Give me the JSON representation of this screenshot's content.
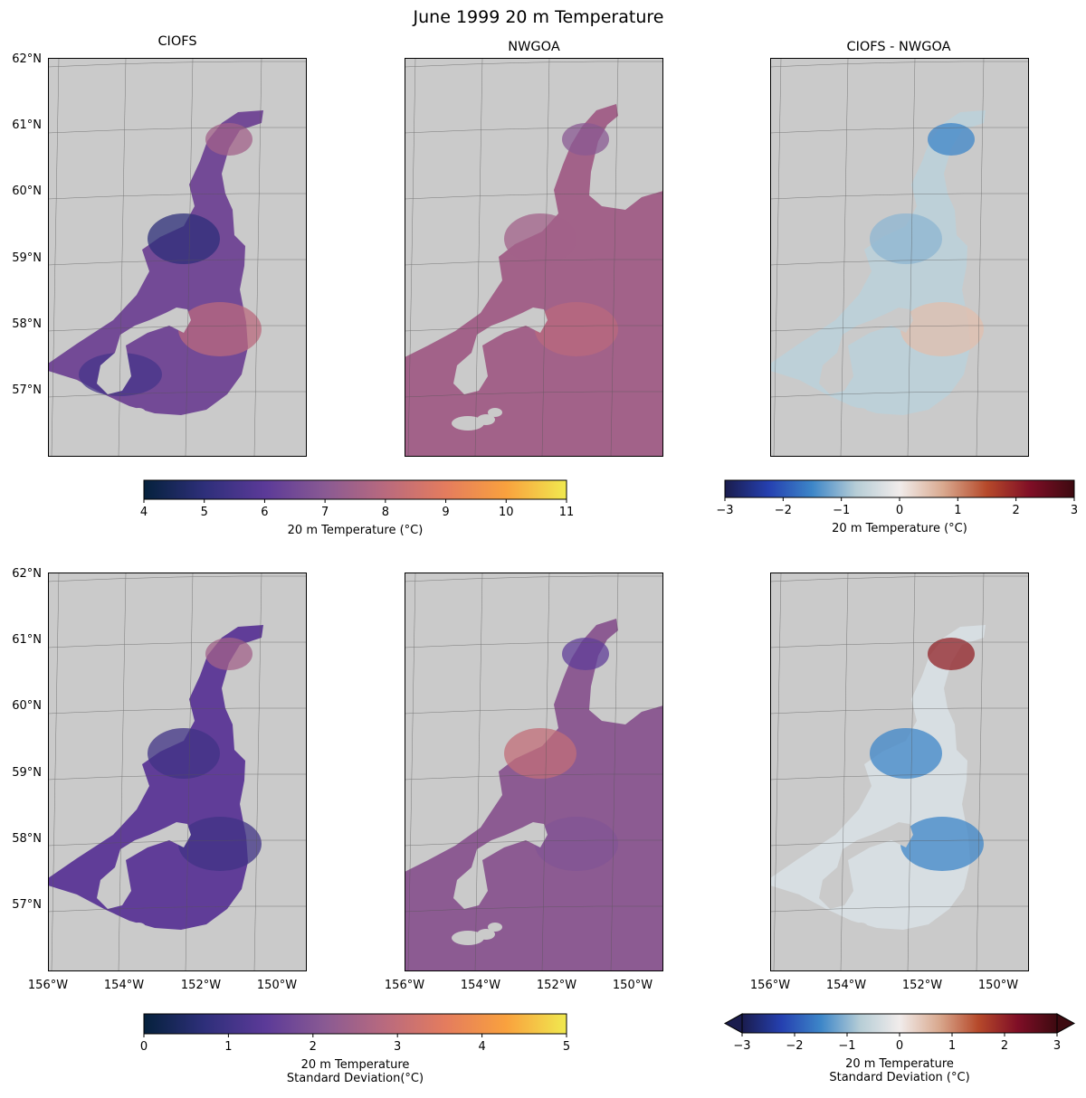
{
  "figure": {
    "title": "June 1999 20 m Temperature",
    "column_titles": [
      "CIOFS",
      "NWGOA",
      "CIOFS - NWGOA"
    ],
    "lat_labels": [
      "62°N",
      "61°N",
      "60°N",
      "59°N",
      "58°N",
      "57°N"
    ],
    "lon_labels": [
      "156°W",
      "154°W",
      "152°W",
      "150°W"
    ]
  },
  "chart_data": [
    {
      "type": "heatmap",
      "panel": "top-left",
      "title": "CIOFS",
      "field": "20 m Temperature (°C)",
      "domain": "CIOFS",
      "colormap": "thermal",
      "clim": [
        4,
        11
      ],
      "xlim": [
        -156,
        -149
      ],
      "ylim": [
        56,
        62
      ],
      "gridlines": true,
      "typical_values": {
        "upper_inlet": 7.5,
        "inlet": 5,
        "shelf_east": 8,
        "southwest": 5.5
      }
    },
    {
      "type": "heatmap",
      "panel": "top-middle",
      "title": "NWGOA",
      "field": "20 m Temperature (°C)",
      "domain": "NWGOA",
      "colormap": "thermal",
      "clim": [
        4,
        11
      ],
      "xlim": [
        -156,
        -149
      ],
      "ylim": [
        56,
        62
      ],
      "gridlines": true,
      "typical_values": {
        "inlet": 7,
        "shelf": 7.5,
        "offshore": 8
      }
    },
    {
      "type": "heatmap",
      "panel": "top-right",
      "title": "CIOFS - NWGOA",
      "field": "20 m Temperature (°C)",
      "domain": "CIOFS",
      "colormap": "balance",
      "clim": [
        -3,
        3
      ],
      "xlim": [
        -156,
        -149
      ],
      "ylim": [
        56,
        62
      ],
      "gridlines": true,
      "typical_values": {
        "inlet": -1.5,
        "shelf": -1,
        "outer_edge": 0.5
      }
    },
    {
      "type": "heatmap",
      "panel": "bottom-left",
      "title": "",
      "field": "20 m Temperature Standard Deviation(°C)",
      "domain": "CIOFS",
      "colormap": "thermal",
      "clim": [
        0,
        5
      ],
      "xlim": [
        -156,
        -149
      ],
      "ylim": [
        56,
        62
      ],
      "gridlines": true,
      "typical_values": {
        "upper_inlet": 2.5,
        "inlet": 1,
        "shelf": 1
      }
    },
    {
      "type": "heatmap",
      "panel": "bottom-middle",
      "title": "",
      "field": "20 m Temperature Standard Deviation(°C)",
      "domain": "NWGOA",
      "colormap": "thermal",
      "clim": [
        0,
        5
      ],
      "xlim": [
        -156,
        -149
      ],
      "ylim": [
        56,
        62
      ],
      "gridlines": true,
      "typical_values": {
        "inlet": 1.5,
        "shelf": 3,
        "offshore": 2
      }
    },
    {
      "type": "heatmap",
      "panel": "bottom-right",
      "title": "",
      "field": "20 m Temperature Standard Deviation (°C)",
      "domain": "CIOFS",
      "colormap": "balance",
      "clim": [
        -3,
        3
      ],
      "extend": "both",
      "xlim": [
        -156,
        -149
      ],
      "ylim": [
        56,
        62
      ],
      "gridlines": true,
      "typical_values": {
        "upper_inlet": 2,
        "inlet": -1.5,
        "shelf": -1.5
      }
    }
  ],
  "colorbars": [
    {
      "position": "top-left",
      "label": "20 m Temperature (°C)",
      "ticks": [
        "4",
        "5",
        "6",
        "7",
        "8",
        "9",
        "10",
        "11"
      ],
      "range": [
        4,
        11
      ],
      "colormap": "thermal",
      "extend": "neither"
    },
    {
      "position": "top-right",
      "label": "20 m Temperature (°C)",
      "ticks": [
        "−3",
        "−2",
        "−1",
        "0",
        "1",
        "2",
        "3"
      ],
      "range": [
        -3,
        3
      ],
      "colormap": "balance",
      "extend": "neither"
    },
    {
      "position": "bottom-left",
      "label_lines": [
        "20 m Temperature",
        "Standard Deviation(°C)"
      ],
      "ticks": [
        "0",
        "1",
        "2",
        "3",
        "4",
        "5"
      ],
      "range": [
        0,
        5
      ],
      "colormap": "thermal",
      "extend": "neither"
    },
    {
      "position": "bottom-right",
      "label_lines": [
        "20 m Temperature",
        "Standard Deviation (°C)"
      ],
      "ticks": [
        "−3",
        "−2",
        "−1",
        "0",
        "1",
        "2",
        "3"
      ],
      "range": [
        -3,
        3
      ],
      "colormap": "balance",
      "extend": "both"
    }
  ],
  "colors": {
    "land": "#cacaca",
    "gridline": "#555555",
    "thermal": [
      "#05213c",
      "#2e2f7a",
      "#5b3a98",
      "#8a5a93",
      "#b96a7e",
      "#e47c5e",
      "#f9a13e",
      "#f0e94f"
    ],
    "balance": [
      "#1a1c4d",
      "#2540b0",
      "#3d86c8",
      "#b6cdd6",
      "#f1eceb",
      "#d9a98f",
      "#b6492a",
      "#7f0e26",
      "#3d0a10"
    ]
  }
}
